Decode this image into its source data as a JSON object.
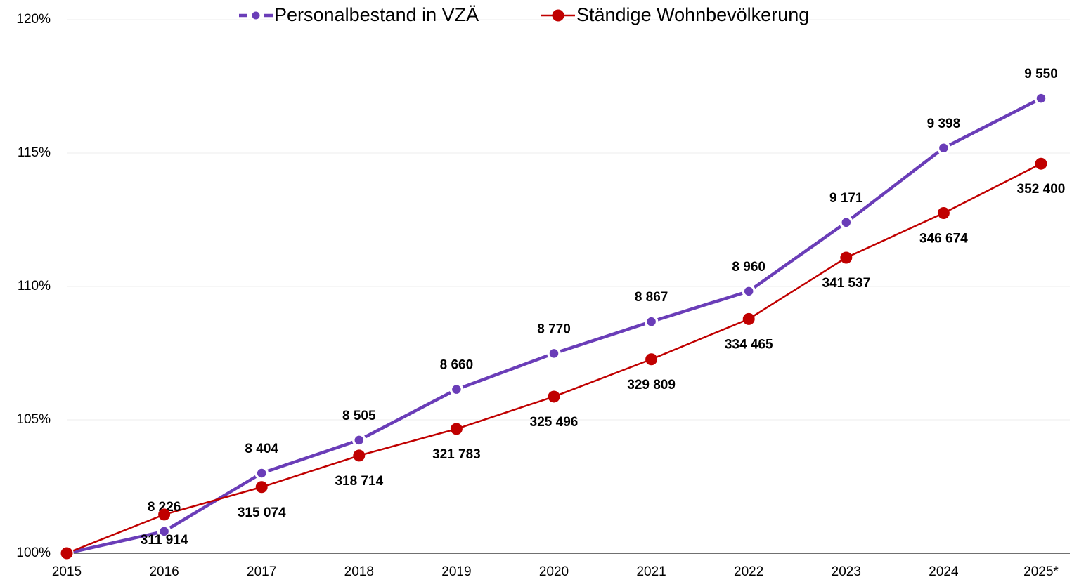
{
  "chart_data": {
    "type": "line",
    "categories": [
      "2015",
      "2016",
      "2017",
      "2018",
      "2019",
      "2020",
      "2021",
      "2022",
      "2023",
      "2024",
      "2025*"
    ],
    "series": [
      {
        "name": "Personalbestand in VZÄ",
        "color": "#6a3db8",
        "values": [
          100,
          100.82,
          103.0,
          104.24,
          106.14,
          107.49,
          108.68,
          109.82,
          112.4,
          115.19,
          117.05
        ],
        "data_labels": [
          null,
          "8 226",
          "8 404",
          "8 505",
          "8 660",
          "8 770",
          "8 867",
          "8 960",
          "9 171",
          "9 398",
          "9 550"
        ]
      },
      {
        "name": "Ständige Wohnbevölkerung",
        "color": "#c00000",
        "values": [
          100,
          101.45,
          102.48,
          103.66,
          104.66,
          105.87,
          107.27,
          108.78,
          111.08,
          112.75,
          114.6
        ],
        "data_labels": [
          null,
          "311 914",
          "315 074",
          "318 714",
          "321 783",
          "325 496",
          "329 809",
          "334 465",
          "341 537",
          "346 674",
          "352 400"
        ]
      }
    ],
    "ylim": [
      100,
      120
    ],
    "yticks": [
      {
        "value": 100,
        "label": "100%"
      },
      {
        "value": 105,
        "label": "105%"
      },
      {
        "value": 110,
        "label": "110%"
      },
      {
        "value": 115,
        "label": "115%"
      },
      {
        "value": 120,
        "label": "120%"
      }
    ],
    "grid": true,
    "legend": "top"
  }
}
